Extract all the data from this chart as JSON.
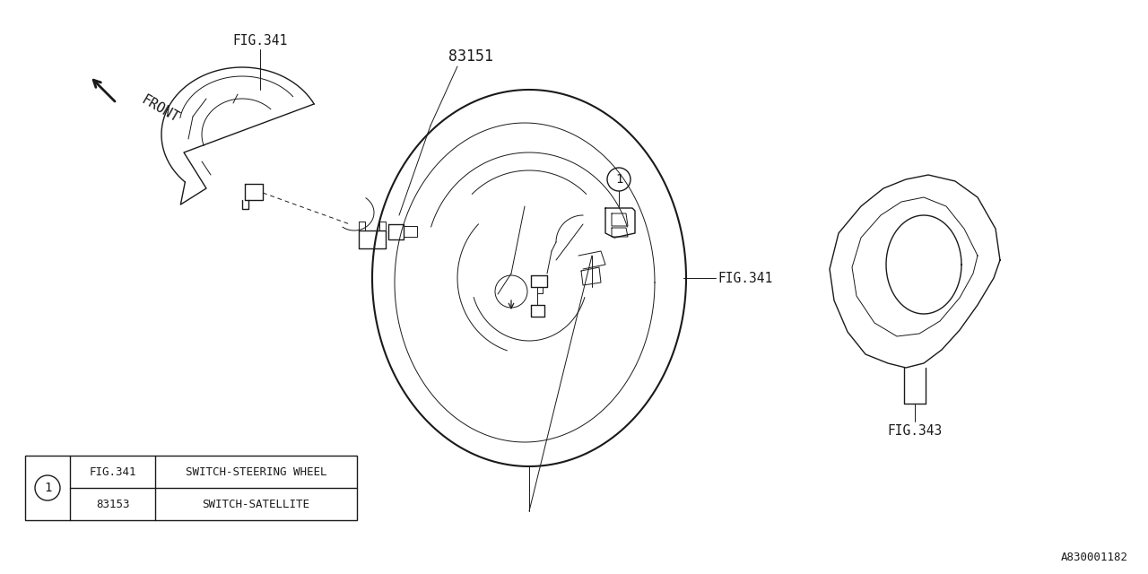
{
  "bg_color": "#ffffff",
  "line_color": "#1a1a1a",
  "fig341_label_top": "FIG.341",
  "fig341_label_right": "FIG.341",
  "fig343_label": "FIG.343",
  "part_83151": "83151",
  "part_number_circle": "1",
  "legend_col1_row1": "FIG.341",
  "legend_col2_row1": "SWITCH-STEERING WHEEL",
  "legend_col1_row2": "83153",
  "legend_col2_row2": "SWITCH-SATELLITE",
  "front_label": "FRONT",
  "diagram_id": "A830001182",
  "line_width": 1.0,
  "thin_line": 0.7
}
